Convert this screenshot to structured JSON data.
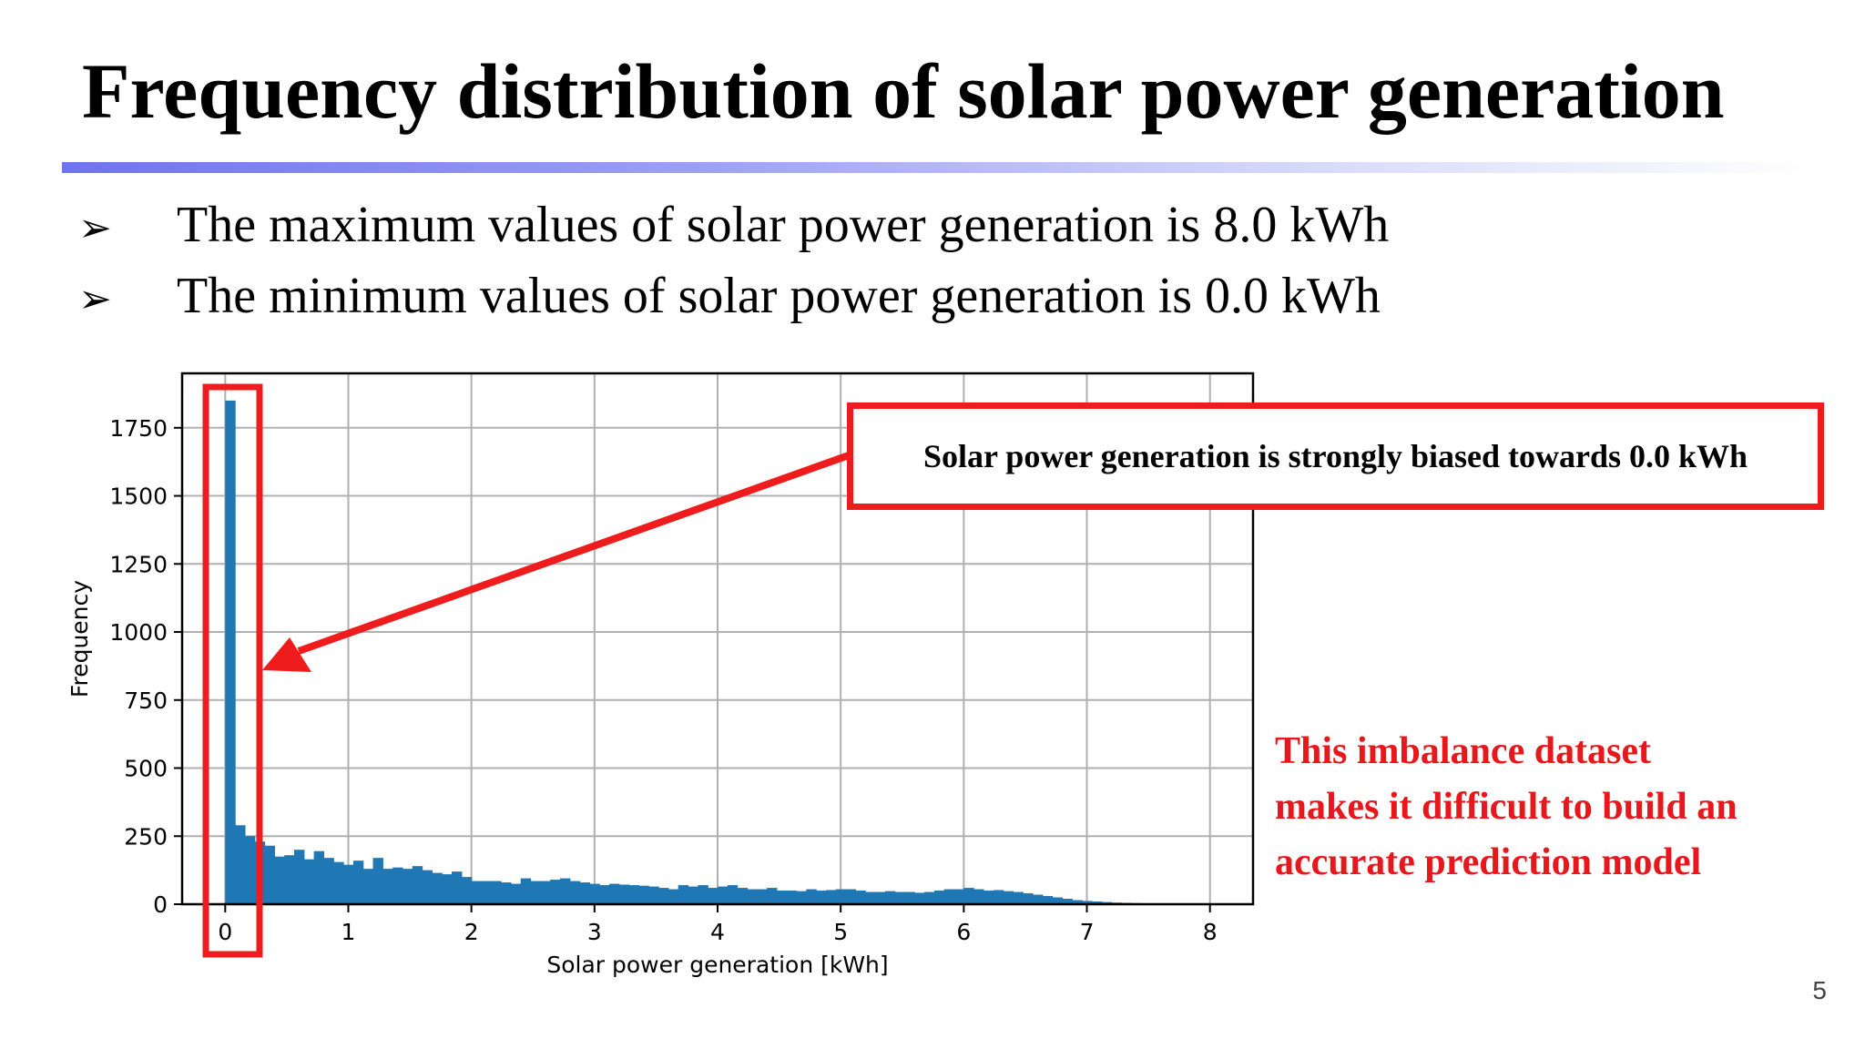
{
  "slide": {
    "title": "Frequency distribution of solar power generation",
    "bullets": [
      "The maximum values of solar power generation is 8.0 kWh",
      "The minimum values of solar power generation is 0.0 kWh"
    ],
    "bullet_glyph": "➢",
    "callout_text": "Solar power generation is strongly biased towards 0.0 kWh",
    "note_lines": [
      "This imbalance dataset",
      "makes it difficult to build an",
      "accurate prediction model"
    ],
    "page_number": "5",
    "colors": {
      "title_rule": "#6f74ee",
      "highlight": "#ee1c1c",
      "note_text": "#e8171b",
      "bar": "#1f77b4"
    }
  },
  "chart_data": {
    "type": "bar",
    "xlabel": "Solar power generation [kWh]",
    "ylabel": "Frequency",
    "xlim": [
      -0.35,
      8.35
    ],
    "ylim": [
      0,
      1950
    ],
    "xticks": [
      0,
      1,
      2,
      3,
      4,
      5,
      6,
      7,
      8
    ],
    "yticks": [
      0,
      250,
      500,
      750,
      1000,
      1250,
      1500,
      1750
    ],
    "grid": true,
    "bin_width": 0.08,
    "bins": [
      {
        "x": 0.0,
        "y": 1850
      },
      {
        "x": 0.08,
        "y": 290
      },
      {
        "x": 0.16,
        "y": 250
      },
      {
        "x": 0.24,
        "y": 230
      },
      {
        "x": 0.32,
        "y": 215
      },
      {
        "x": 0.4,
        "y": 175
      },
      {
        "x": 0.48,
        "y": 180
      },
      {
        "x": 0.56,
        "y": 200
      },
      {
        "x": 0.64,
        "y": 165
      },
      {
        "x": 0.72,
        "y": 195
      },
      {
        "x": 0.8,
        "y": 170
      },
      {
        "x": 0.88,
        "y": 155
      },
      {
        "x": 0.96,
        "y": 145
      },
      {
        "x": 1.04,
        "y": 160
      },
      {
        "x": 1.12,
        "y": 130
      },
      {
        "x": 1.2,
        "y": 170
      },
      {
        "x": 1.28,
        "y": 130
      },
      {
        "x": 1.36,
        "y": 135
      },
      {
        "x": 1.44,
        "y": 130
      },
      {
        "x": 1.52,
        "y": 140
      },
      {
        "x": 1.6,
        "y": 125
      },
      {
        "x": 1.68,
        "y": 115
      },
      {
        "x": 1.76,
        "y": 110
      },
      {
        "x": 1.84,
        "y": 120
      },
      {
        "x": 1.92,
        "y": 100
      },
      {
        "x": 2.0,
        "y": 85
      },
      {
        "x": 2.08,
        "y": 85
      },
      {
        "x": 2.16,
        "y": 85
      },
      {
        "x": 2.24,
        "y": 80
      },
      {
        "x": 2.32,
        "y": 75
      },
      {
        "x": 2.4,
        "y": 95
      },
      {
        "x": 2.48,
        "y": 85
      },
      {
        "x": 2.56,
        "y": 85
      },
      {
        "x": 2.64,
        "y": 90
      },
      {
        "x": 2.72,
        "y": 95
      },
      {
        "x": 2.8,
        "y": 85
      },
      {
        "x": 2.88,
        "y": 80
      },
      {
        "x": 2.96,
        "y": 75
      },
      {
        "x": 3.04,
        "y": 70
      },
      {
        "x": 3.12,
        "y": 75
      },
      {
        "x": 3.2,
        "y": 72
      },
      {
        "x": 3.28,
        "y": 70
      },
      {
        "x": 3.36,
        "y": 68
      },
      {
        "x": 3.44,
        "y": 65
      },
      {
        "x": 3.52,
        "y": 60
      },
      {
        "x": 3.6,
        "y": 55
      },
      {
        "x": 3.68,
        "y": 70
      },
      {
        "x": 3.76,
        "y": 65
      },
      {
        "x": 3.84,
        "y": 70
      },
      {
        "x": 3.92,
        "y": 60
      },
      {
        "x": 4.0,
        "y": 65
      },
      {
        "x": 4.08,
        "y": 70
      },
      {
        "x": 4.16,
        "y": 60
      },
      {
        "x": 4.24,
        "y": 55
      },
      {
        "x": 4.32,
        "y": 55
      },
      {
        "x": 4.4,
        "y": 60
      },
      {
        "x": 4.48,
        "y": 50
      },
      {
        "x": 4.56,
        "y": 50
      },
      {
        "x": 4.64,
        "y": 48
      },
      {
        "x": 4.72,
        "y": 55
      },
      {
        "x": 4.8,
        "y": 50
      },
      {
        "x": 4.88,
        "y": 52
      },
      {
        "x": 4.96,
        "y": 55
      },
      {
        "x": 5.04,
        "y": 55
      },
      {
        "x": 5.12,
        "y": 50
      },
      {
        "x": 5.2,
        "y": 45
      },
      {
        "x": 5.28,
        "y": 45
      },
      {
        "x": 5.36,
        "y": 48
      },
      {
        "x": 5.44,
        "y": 45
      },
      {
        "x": 5.52,
        "y": 45
      },
      {
        "x": 5.6,
        "y": 42
      },
      {
        "x": 5.68,
        "y": 45
      },
      {
        "x": 5.76,
        "y": 50
      },
      {
        "x": 5.84,
        "y": 55
      },
      {
        "x": 5.92,
        "y": 55
      },
      {
        "x": 6.0,
        "y": 60
      },
      {
        "x": 6.08,
        "y": 55
      },
      {
        "x": 6.16,
        "y": 50
      },
      {
        "x": 6.24,
        "y": 52
      },
      {
        "x": 6.32,
        "y": 48
      },
      {
        "x": 6.4,
        "y": 45
      },
      {
        "x": 6.48,
        "y": 40
      },
      {
        "x": 6.56,
        "y": 35
      },
      {
        "x": 6.64,
        "y": 30
      },
      {
        "x": 6.72,
        "y": 25
      },
      {
        "x": 6.8,
        "y": 20
      },
      {
        "x": 6.88,
        "y": 15
      },
      {
        "x": 6.96,
        "y": 12
      },
      {
        "x": 7.04,
        "y": 10
      },
      {
        "x": 7.12,
        "y": 8
      },
      {
        "x": 7.2,
        "y": 6
      },
      {
        "x": 7.28,
        "y": 5
      },
      {
        "x": 7.36,
        "y": 4
      },
      {
        "x": 7.44,
        "y": 3
      },
      {
        "x": 7.52,
        "y": 2
      },
      {
        "x": 7.6,
        "y": 2
      },
      {
        "x": 7.68,
        "y": 1
      },
      {
        "x": 7.76,
        "y": 1
      }
    ]
  }
}
